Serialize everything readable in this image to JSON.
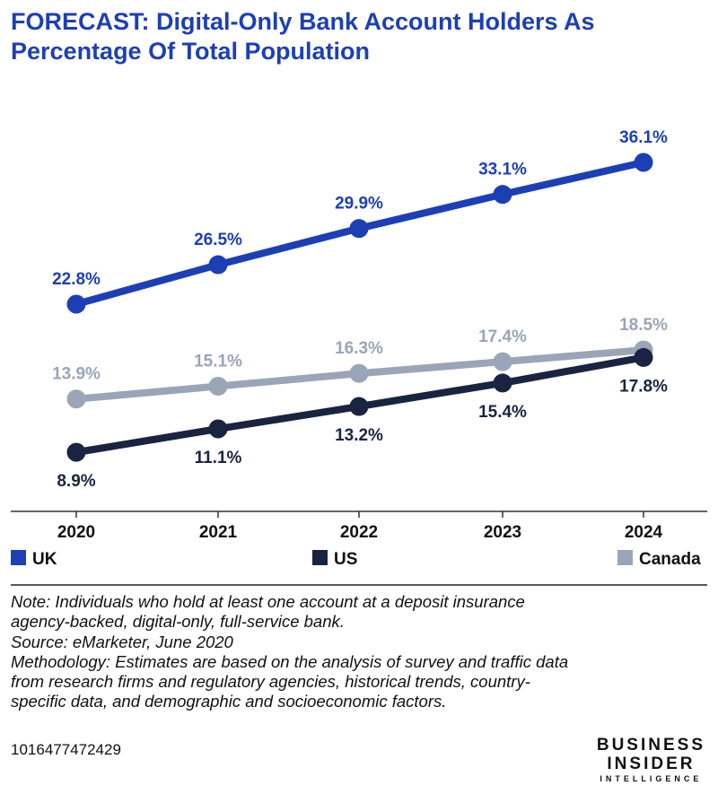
{
  "chart_data": {
    "type": "line",
    "title": "FORECAST: Digital-Only Bank Account Holders As Percentage Of Total Population",
    "categories": [
      "2020",
      "2021",
      "2022",
      "2023",
      "2024"
    ],
    "series": [
      {
        "name": "UK",
        "values": [
          22.8,
          26.5,
          29.9,
          33.1,
          36.1
        ],
        "labels": [
          "22.8%",
          "26.5%",
          "29.9%",
          "33.1%",
          "36.1%"
        ],
        "color": "#1d3fb5",
        "label_pos": "above"
      },
      {
        "name": "US",
        "values": [
          8.9,
          11.1,
          13.2,
          15.4,
          17.8
        ],
        "labels": [
          "8.9%",
          "11.1%",
          "13.2%",
          "15.4%",
          "17.8%"
        ],
        "color": "#192440",
        "label_pos": "below"
      },
      {
        "name": "Canada",
        "values": [
          13.9,
          15.1,
          16.3,
          17.4,
          18.5
        ],
        "labels": [
          "13.9%",
          "15.1%",
          "16.3%",
          "17.4%",
          "18.5%"
        ],
        "color": "#9aa5b8",
        "label_pos": "above"
      }
    ],
    "xlabel": "",
    "ylabel": "",
    "ylim": [
      0,
      40
    ],
    "grid": false,
    "legend": "bottom"
  },
  "notes": {
    "note_line1": "Note: Individuals who hold at least one account at a deposit insurance",
    "note_line2": "agency-backed, digital-only, full-service bank.",
    "source": "Source: eMarketer, June 2020",
    "method_line1": "Methodology: Estimates are based on the analysis of survey and traffic data",
    "method_line2": "from research firms and regulatory agencies, historical trends, country-",
    "method_line3": "specific data, and demographic and socioeconomic factors."
  },
  "footer": {
    "chart_id": "1016477472429",
    "logo_line1": "BUSINESS",
    "logo_line2": "INSIDER",
    "logo_line3": "INTELLIGENCE"
  },
  "colors": {
    "uk": "#1d3fb5",
    "us": "#192440",
    "canada": "#9aa5b8",
    "axis": "#333333"
  }
}
